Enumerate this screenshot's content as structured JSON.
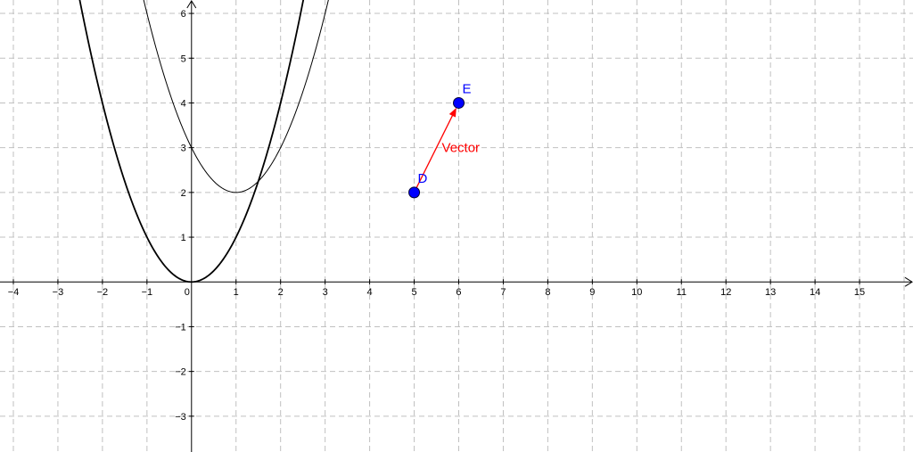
{
  "chart_data": {
    "type": "line",
    "xlim": [
      -4.3,
      16.2
    ],
    "ylim": [
      -3.8,
      6.3
    ],
    "grid": true,
    "x_ticks": [
      -4,
      -3,
      -2,
      -1,
      0,
      1,
      2,
      3,
      4,
      5,
      6,
      7,
      8,
      9,
      10,
      11,
      12,
      13,
      14,
      15
    ],
    "y_ticks": [
      -3,
      -2,
      -1,
      1,
      2,
      3,
      4,
      5,
      6
    ],
    "x_tick_labels": [
      "−4",
      "−3",
      "−2",
      "−1",
      "0",
      "1",
      "2",
      "3",
      "4",
      "5",
      "6",
      "7",
      "8",
      "9",
      "10",
      "11",
      "12",
      "13",
      "14",
      "15"
    ],
    "y_tick_labels": [
      "−3",
      "−2",
      "−1",
      "1",
      "2",
      "3",
      "4",
      "5",
      "6"
    ],
    "curves": [
      {
        "id": "f",
        "expression": "x^2",
        "coef": [
          1,
          0,
          0
        ],
        "color": "#000000",
        "weight": "thick"
      },
      {
        "id": "g",
        "expression": "(x-1)^2+2",
        "coef": [
          1,
          -2,
          3
        ],
        "color": "#000000",
        "weight": "thin"
      }
    ],
    "points": [
      {
        "label": "D",
        "x": 5,
        "y": 2,
        "color": "#0000ff"
      },
      {
        "label": "E",
        "x": 6,
        "y": 4,
        "color": "#0000ff"
      }
    ],
    "vector": {
      "label": "Vector",
      "from": [
        5,
        2
      ],
      "to": [
        6,
        4
      ],
      "color": "#ff0000"
    }
  }
}
